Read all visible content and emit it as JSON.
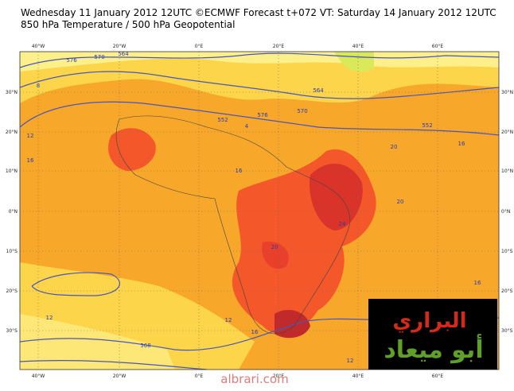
{
  "header": {
    "title": "Wednesday 11 January 2012 12UTC ©ECMWF Forecast t+072 VT: Saturday 14 January 2012 12UTC",
    "subtitle": "850 hPa Temperature / 500 hPa Geopotential"
  },
  "map": {
    "longitudes": [
      "40°W",
      "20°W",
      "0°E",
      "20°E",
      "40°E",
      "60°E"
    ],
    "latitudes": [
      "30°N",
      "20°N",
      "10°N",
      "0°N",
      "10°S",
      "20°S",
      "30°S"
    ],
    "contour_labels": [
      "576",
      "570",
      "564",
      "564",
      "552",
      "576",
      "570",
      "552",
      "4",
      "8",
      "12",
      "16",
      "16",
      "20",
      "20",
      "24",
      "20",
      "16",
      "12",
      "12",
      "16",
      "568",
      "16",
      "12"
    ]
  },
  "watermark": {
    "line1": "البراري",
    "line2": "أبو ميعاد",
    "site": "albrari.com"
  }
}
